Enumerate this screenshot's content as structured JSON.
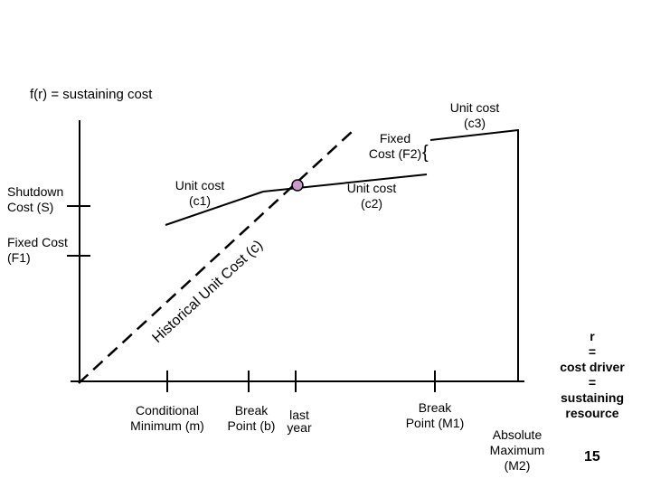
{
  "title": "f(r) = sustaining cost",
  "y_ticks": {
    "shutdown": [
      "Shutdown",
      "Cost (S)"
    ],
    "fixed_f1": [
      "Fixed Cost",
      "(F1)"
    ]
  },
  "segments": {
    "unit_cost_c1": [
      "Unit cost",
      "(c1)"
    ],
    "unit_cost_c2": [
      "Unit cost",
      "(c2)"
    ],
    "unit_cost_c3": [
      "Unit cost",
      "(c3)"
    ],
    "fixed_f2": [
      "Fixed",
      "Cost (F2)"
    ],
    "brace": "{",
    "historical": "Historical Unit Cost (c)"
  },
  "x_ticks": {
    "conditional_min": [
      "Conditional",
      "Minimum (m)"
    ],
    "break_b": [
      "Break",
      "Point (b)"
    ],
    "last_year": [
      "last",
      "year"
    ],
    "break_m1": [
      "Break",
      "Point (M1)"
    ],
    "absolute_max": [
      "Absolute",
      "Maximum",
      "(M2)"
    ]
  },
  "x_axis_label": [
    "r",
    "=",
    "cost driver",
    "=",
    "sustaining",
    "resource"
  ],
  "page_number": "15",
  "colors": {
    "marker_fill": "#cc99cc",
    "ink": "#000000"
  }
}
